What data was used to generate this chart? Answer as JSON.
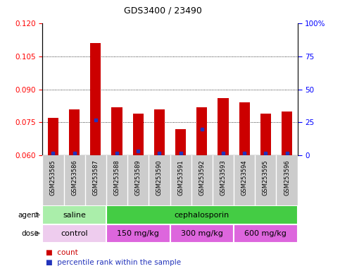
{
  "title": "GDS3400 / 23490",
  "samples": [
    "GSM253585",
    "GSM253586",
    "GSM253587",
    "GSM253588",
    "GSM253589",
    "GSM253590",
    "GSM253591",
    "GSM253592",
    "GSM253593",
    "GSM253594",
    "GSM253595",
    "GSM253596"
  ],
  "bar_values": [
    0.077,
    0.081,
    0.111,
    0.082,
    0.079,
    0.081,
    0.072,
    0.082,
    0.086,
    0.084,
    0.079,
    0.08
  ],
  "bar_bottom": 0.06,
  "blue_values": [
    0.061,
    0.061,
    0.076,
    0.061,
    0.062,
    0.061,
    0.061,
    0.072,
    0.061,
    0.061,
    0.061,
    0.061
  ],
  "ylim_min": 0.06,
  "ylim_max": 0.12,
  "yticks_left": [
    0.06,
    0.075,
    0.09,
    0.105,
    0.12
  ],
  "yticks_right_pct": [
    0,
    25,
    50,
    75,
    100
  ],
  "ytick_right_labels": [
    "0",
    "25",
    "50",
    "75",
    "100%"
  ],
  "bar_color": "#cc0000",
  "blue_color": "#2233bb",
  "agent_groups": [
    {
      "label": "saline",
      "start": 0,
      "end": 3,
      "color": "#aaeeaa"
    },
    {
      "label": "cephalosporin",
      "start": 3,
      "end": 12,
      "color": "#44cc44"
    }
  ],
  "dose_groups": [
    {
      "label": "control",
      "start": 0,
      "end": 3,
      "color": "#eeccee"
    },
    {
      "label": "150 mg/kg",
      "start": 3,
      "end": 6,
      "color": "#dd66dd"
    },
    {
      "label": "300 mg/kg",
      "start": 6,
      "end": 9,
      "color": "#dd66dd"
    },
    {
      "label": "600 mg/kg",
      "start": 9,
      "end": 12,
      "color": "#dd66dd"
    }
  ],
  "xlabel_bg_color": "#cccccc",
  "legend_red": "#cc0000",
  "legend_blue": "#2233bb"
}
